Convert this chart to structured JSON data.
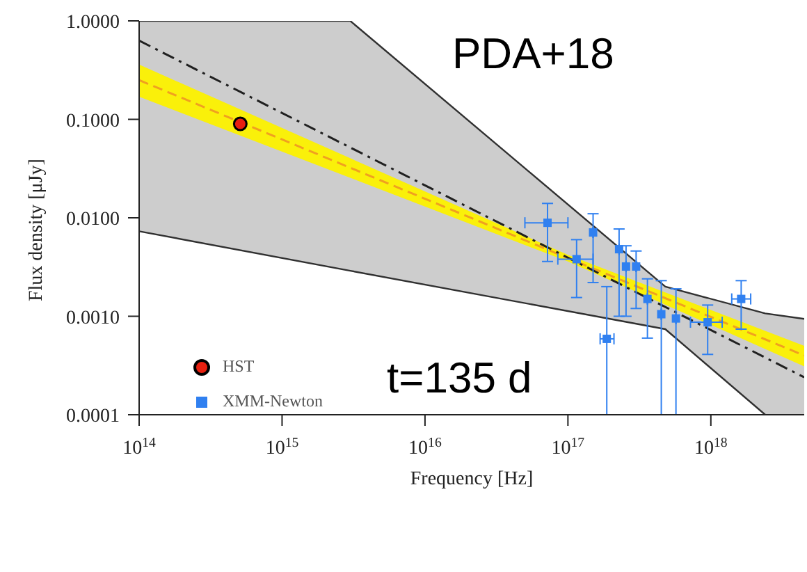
{
  "chart_data": {
    "type": "line",
    "xlabel": "Frequency [Hz]",
    "ylabel": "Flux density [μJy]",
    "log": "xy",
    "xlim": [
      100000000000000.0,
      4.5e+18
    ],
    "ylim": [
      0.0001,
      1
    ],
    "xticks": [
      {
        "value": 100000000000000.0,
        "label": "10$^{14}$"
      },
      {
        "value": 1000000000000000.0,
        "label": "10$^{15}$"
      },
      {
        "value": 1e+16,
        "label": "10$^{16}$"
      },
      {
        "value": 1e+17,
        "label": "10$^{17}$"
      },
      {
        "value": 1e+18,
        "label": "10$^{18}$"
      }
    ],
    "yticks": [
      {
        "value": 0.0001,
        "label": "0.0001"
      },
      {
        "value": 0.001,
        "label": "0.0010"
      },
      {
        "value": 0.01,
        "label": "0.0100"
      },
      {
        "value": 0.1,
        "label": "0.1000"
      },
      {
        "value": 1,
        "label": "1.0000"
      }
    ],
    "grid": false,
    "legend": "bottom left",
    "annotations": [
      "PDA+18",
      "t=135 d"
    ],
    "series": [
      {
        "color": "#303030",
        "line_style": "solid",
        "x": [
          100000000000000.0,
          3000000000000000.0,
          4.8e+17,
          2.4e+18,
          4.5e+18
        ],
        "values": [
          1,
          1,
          0.002,
          0.00107,
          0.00094
        ],
        "lower": [
          0.0073,
          0.0029,
          0.00074,
          0.0001,
          0.0001
        ],
        "upper": [
          1,
          1,
          0.002,
          0.00107,
          0.00094
        ]
      },
      {
        "color": "#303030",
        "line_style": "solid",
        "x": [
          100000000000000.0,
          3000000000000000.0,
          4.8e+17,
          2.4e+18
        ],
        "values": [
          0.0073,
          0.0029,
          0.00074,
          0.0001
        ]
      },
      {
        "color": "#f0a020",
        "line_style": "dashed",
        "x": [
          100000000000000.0,
          1e+17,
          4.5e+18
        ],
        "values": [
          0.25,
          0.0039,
          0.0004
        ],
        "lower": [
          0.17,
          0.0036,
          0.00031
        ],
        "upper": [
          0.36,
          0.0042,
          0.0005
        ]
      },
      {
        "color": "#202020",
        "line_style": "dashdot",
        "x": [
          100000000000000.0,
          4.5e+18
        ],
        "values": [
          0.63,
          0.00024
        ]
      },
      {
        "type": "scatter",
        "name": "HST",
        "color": "#e82010",
        "marker": "circle",
        "x": [
          510000000000000.0
        ],
        "values": [
          0.09
        ]
      },
      {
        "type": "scatter",
        "name": "XMM-Newton",
        "color": "#3080f0",
        "marker": "square",
        "x": [
          7.2e+16,
          1.15e+17,
          1.5e+17,
          2.28e+17,
          2.55e+17,
          3e+17,
          3.6e+17,
          4.5e+17,
          5.7e+17,
          9.5e+17,
          1.63e+18,
          1.87e+17
        ],
        "values": [
          0.0089,
          0.0038,
          0.0071,
          0.0048,
          0.0032,
          0.0032,
          0.0015,
          0.00105,
          0.00095,
          0.00087,
          0.0015,
          0.00059
        ],
        "errors": [
          [
            0.0036,
            0.014
          ],
          [
            0.00155,
            0.006
          ],
          [
            0.0022,
            0.011
          ],
          [
            0.001,
            0.0077
          ],
          [
            0.001,
            0.0052
          ],
          [
            0.0012,
            0.0046
          ],
          [
            0.0006,
            0.0024
          ],
          [
            0.0001,
            0.0023
          ],
          [
            0.0001,
            0.0019
          ],
          [
            0.00041,
            0.0013
          ],
          [
            0.00074,
            0.0023
          ],
          [
            0.0001,
            0.002
          ]
        ],
        "xerrors": [
          [
            5e+16,
            1e+17
          ],
          [
            8.5e+16,
            1.5e+17
          ],
          null,
          null,
          null,
          null,
          null,
          null,
          null,
          [
            7.2e+17,
            1.2e+18
          ],
          [
            1.4e+18,
            1.9e+18
          ],
          [
            1.68e+17,
            2.1e+17
          ]
        ]
      }
    ]
  }
}
